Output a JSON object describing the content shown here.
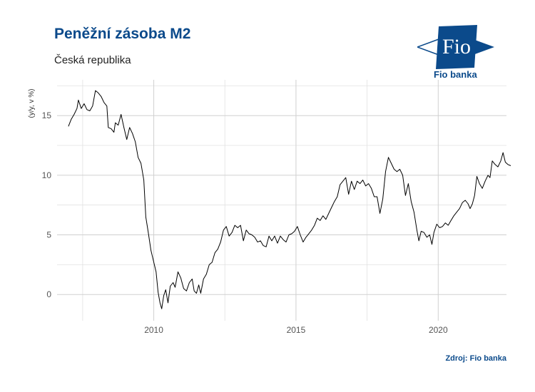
{
  "header": {
    "title": "Peněžní zásoba M2",
    "subtitle": "Česká republika",
    "source": "Zdroj: Fio banka"
  },
  "logo": {
    "mark_text": "Fio",
    "name": "Fio banka",
    "color": "#0b4a8b"
  },
  "colors": {
    "brand": "#0b4a8b",
    "line": "#000000",
    "grid": "#d0d0d0"
  },
  "chart_data": {
    "type": "line",
    "title": "Peněžní zásoba M2",
    "subtitle": "Česká republika",
    "xlabel": "",
    "ylabel": "(y/y, v %)",
    "xlim": [
      2006.6,
      2022.4
    ],
    "ylim": [
      -2.2,
      18
    ],
    "x_ticks": [
      2010,
      2015,
      2020
    ],
    "x_tick_labels": [
      "2010",
      "2015",
      "2020"
    ],
    "y_ticks": [
      0,
      5,
      10,
      15
    ],
    "y_tick_labels": [
      "0",
      "5",
      "10",
      "15"
    ],
    "grid": true,
    "series": [
      {
        "values": [
          [
            2007.0,
            14.1
          ],
          [
            2007.1,
            14.7
          ],
          [
            2007.2,
            15.1
          ],
          [
            2007.3,
            15.6
          ],
          [
            2007.35,
            16.3
          ],
          [
            2007.45,
            15.6
          ],
          [
            2007.55,
            16.0
          ],
          [
            2007.65,
            15.5
          ],
          [
            2007.75,
            15.4
          ],
          [
            2007.85,
            15.8
          ],
          [
            2007.95,
            17.1
          ],
          [
            2008.05,
            16.9
          ],
          [
            2008.15,
            16.6
          ],
          [
            2008.25,
            16.1
          ],
          [
            2008.35,
            15.8
          ],
          [
            2008.4,
            14.0
          ],
          [
            2008.5,
            13.9
          ],
          [
            2008.6,
            13.6
          ],
          [
            2008.65,
            14.4
          ],
          [
            2008.75,
            14.2
          ],
          [
            2008.85,
            15.1
          ],
          [
            2008.95,
            14.0
          ],
          [
            2009.05,
            13.0
          ],
          [
            2009.15,
            14.0
          ],
          [
            2009.25,
            13.5
          ],
          [
            2009.35,
            12.8
          ],
          [
            2009.45,
            11.5
          ],
          [
            2009.55,
            11.0
          ],
          [
            2009.65,
            9.6
          ],
          [
            2009.72,
            6.5
          ],
          [
            2009.8,
            5.3
          ],
          [
            2009.9,
            3.7
          ],
          [
            2010.0,
            2.7
          ],
          [
            2010.08,
            1.9
          ],
          [
            2010.15,
            0.2
          ],
          [
            2010.22,
            -0.7
          ],
          [
            2010.28,
            -1.2
          ],
          [
            2010.35,
            -0.1
          ],
          [
            2010.42,
            0.4
          ],
          [
            2010.5,
            -0.7
          ],
          [
            2010.58,
            0.7
          ],
          [
            2010.68,
            1.0
          ],
          [
            2010.75,
            0.6
          ],
          [
            2010.85,
            1.9
          ],
          [
            2010.95,
            1.4
          ],
          [
            2011.05,
            0.5
          ],
          [
            2011.15,
            0.3
          ],
          [
            2011.25,
            1.0
          ],
          [
            2011.35,
            1.3
          ],
          [
            2011.42,
            0.3
          ],
          [
            2011.5,
            0.1
          ],
          [
            2011.58,
            0.8
          ],
          [
            2011.65,
            0.1
          ],
          [
            2011.75,
            1.3
          ],
          [
            2011.85,
            1.7
          ],
          [
            2011.95,
            2.5
          ],
          [
            2012.05,
            2.7
          ],
          [
            2012.15,
            3.5
          ],
          [
            2012.25,
            3.8
          ],
          [
            2012.35,
            4.4
          ],
          [
            2012.45,
            5.4
          ],
          [
            2012.55,
            5.7
          ],
          [
            2012.65,
            4.9
          ],
          [
            2012.75,
            5.2
          ],
          [
            2012.85,
            5.8
          ],
          [
            2012.95,
            5.6
          ],
          [
            2013.05,
            5.8
          ],
          [
            2013.15,
            4.5
          ],
          [
            2013.25,
            5.4
          ],
          [
            2013.35,
            5.1
          ],
          [
            2013.45,
            5.0
          ],
          [
            2013.55,
            4.8
          ],
          [
            2013.65,
            4.4
          ],
          [
            2013.75,
            4.5
          ],
          [
            2013.85,
            4.1
          ],
          [
            2013.95,
            4.0
          ],
          [
            2014.05,
            4.9
          ],
          [
            2014.15,
            4.5
          ],
          [
            2014.25,
            4.9
          ],
          [
            2014.35,
            4.3
          ],
          [
            2014.45,
            4.9
          ],
          [
            2014.55,
            4.6
          ],
          [
            2014.65,
            4.4
          ],
          [
            2014.75,
            5.0
          ],
          [
            2014.85,
            5.1
          ],
          [
            2014.95,
            5.3
          ],
          [
            2015.05,
            5.7
          ],
          [
            2015.15,
            5.0
          ],
          [
            2015.25,
            4.4
          ],
          [
            2015.35,
            4.8
          ],
          [
            2015.45,
            5.1
          ],
          [
            2015.55,
            5.4
          ],
          [
            2015.65,
            5.8
          ],
          [
            2015.75,
            6.4
          ],
          [
            2015.85,
            6.2
          ],
          [
            2015.95,
            6.6
          ],
          [
            2016.05,
            6.3
          ],
          [
            2016.15,
            6.8
          ],
          [
            2016.25,
            7.3
          ],
          [
            2016.35,
            7.8
          ],
          [
            2016.45,
            8.2
          ],
          [
            2016.55,
            9.2
          ],
          [
            2016.65,
            9.5
          ],
          [
            2016.75,
            9.8
          ],
          [
            2016.85,
            8.4
          ],
          [
            2016.95,
            9.5
          ],
          [
            2017.05,
            8.8
          ],
          [
            2017.15,
            9.5
          ],
          [
            2017.25,
            9.3
          ],
          [
            2017.35,
            9.6
          ],
          [
            2017.45,
            9.1
          ],
          [
            2017.55,
            9.3
          ],
          [
            2017.65,
            8.9
          ],
          [
            2017.75,
            8.2
          ],
          [
            2017.85,
            8.2
          ],
          [
            2017.95,
            6.8
          ],
          [
            2018.05,
            8.0
          ],
          [
            2018.15,
            10.3
          ],
          [
            2018.25,
            11.5
          ],
          [
            2018.35,
            11.0
          ],
          [
            2018.45,
            10.5
          ],
          [
            2018.55,
            10.3
          ],
          [
            2018.65,
            10.5
          ],
          [
            2018.75,
            10.0
          ],
          [
            2018.85,
            8.3
          ],
          [
            2018.95,
            9.3
          ],
          [
            2019.05,
            7.8
          ],
          [
            2019.15,
            6.9
          ],
          [
            2019.25,
            5.4
          ],
          [
            2019.32,
            4.5
          ],
          [
            2019.4,
            5.3
          ],
          [
            2019.5,
            5.2
          ],
          [
            2019.6,
            4.8
          ],
          [
            2019.7,
            5.0
          ],
          [
            2019.78,
            4.2
          ],
          [
            2019.85,
            5.2
          ],
          [
            2019.95,
            5.9
          ],
          [
            2020.05,
            5.6
          ],
          [
            2020.15,
            5.7
          ],
          [
            2020.25,
            6.0
          ],
          [
            2020.35,
            5.8
          ],
          [
            2020.45,
            6.2
          ],
          [
            2020.55,
            6.6
          ],
          [
            2020.65,
            6.9
          ],
          [
            2020.75,
            7.2
          ],
          [
            2020.85,
            7.7
          ],
          [
            2020.95,
            7.9
          ],
          [
            2021.05,
            7.6
          ],
          [
            2021.12,
            7.2
          ],
          [
            2021.2,
            7.6
          ],
          [
            2021.28,
            8.3
          ],
          [
            2021.36,
            9.9
          ],
          [
            2021.45,
            9.3
          ],
          [
            2021.55,
            8.9
          ],
          [
            2021.65,
            9.5
          ],
          [
            2021.75,
            10.0
          ],
          [
            2021.82,
            9.8
          ],
          [
            2021.9,
            11.2
          ],
          [
            2022.0,
            10.9
          ],
          [
            2022.1,
            10.7
          ],
          [
            2022.2,
            11.2
          ],
          [
            2022.28,
            11.9
          ],
          [
            2022.36,
            11.1
          ],
          [
            2022.45,
            10.9
          ],
          [
            2022.55,
            10.8
          ]
        ]
      }
    ]
  }
}
